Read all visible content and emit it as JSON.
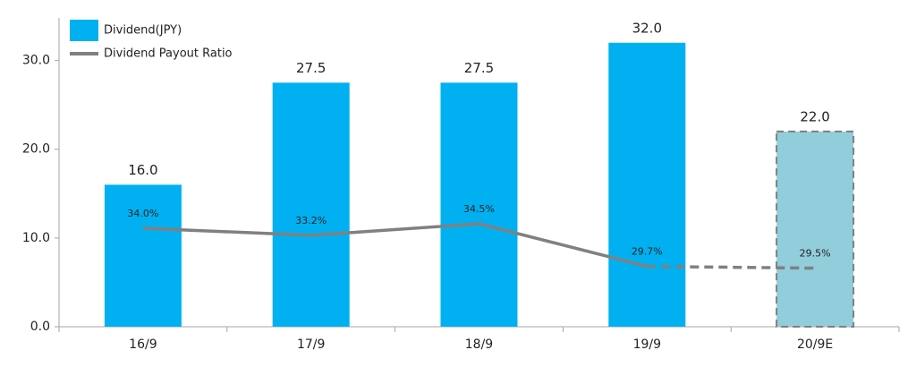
{
  "chart_data": {
    "type": "bar-line",
    "categories": [
      "16/9",
      "17/9",
      "18/9",
      "19/9",
      "20/9E"
    ],
    "series": [
      {
        "name": "Dividend(JPY)",
        "type": "bar",
        "color": "#00b0f0",
        "colors": [
          "#00b0f0",
          "#00b0f0",
          "#00b0f0",
          "#00b0f0",
          "#92cddc"
        ],
        "dashed": [
          false,
          false,
          false,
          false,
          true
        ],
        "values": [
          16.0,
          27.5,
          27.5,
          32.0,
          22.0
        ],
        "value_labels": [
          "16.0",
          "27.5",
          "27.5",
          "32.0",
          "22.0"
        ]
      },
      {
        "name": "Dividend Payout Ratio",
        "type": "line",
        "axis": "y2",
        "color": "#808080",
        "dashed": [
          false,
          false,
          false,
          false,
          true
        ],
        "values": [
          34.0,
          33.2,
          34.5,
          29.7,
          29.5
        ],
        "value_labels": [
          "34.0%",
          "33.2%",
          "34.5%",
          "29.7%",
          "29.5%"
        ]
      }
    ],
    "ylim": [
      0,
      34.8
    ],
    "yticks": [
      {
        "value": 0,
        "label": "0.0"
      },
      {
        "value": 10,
        "label": "10.0"
      },
      {
        "value": 20,
        "label": "20.0"
      },
      {
        "value": 30,
        "label": "30.0"
      }
    ],
    "y2lim": [
      22.9,
      57.7
    ],
    "legend": "top-left"
  }
}
